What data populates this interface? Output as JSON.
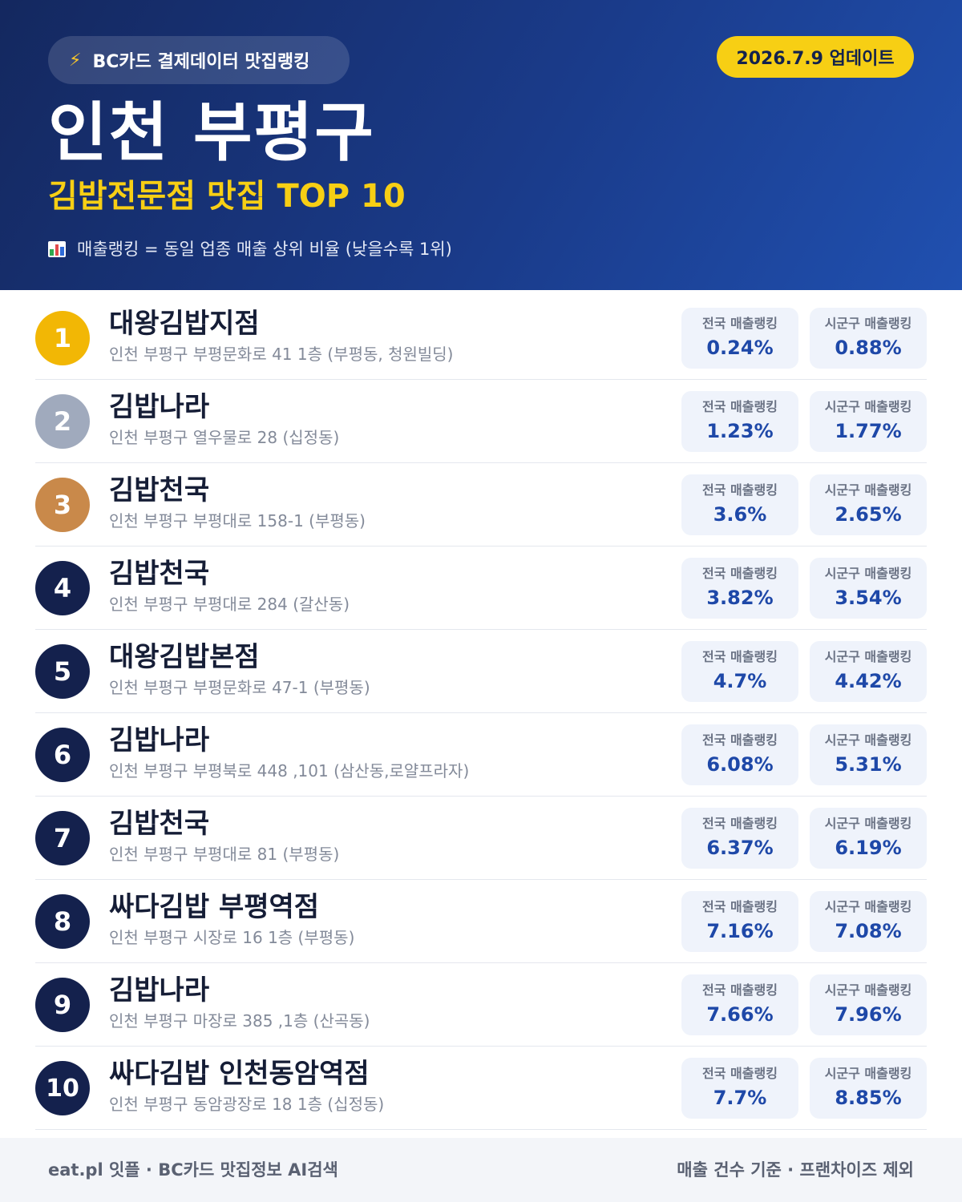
{
  "header": {
    "badge_icon": "lightning-bolt-icon",
    "badge_text": "BC카드 결제데이터 맛집랭킹",
    "update_text": "2026.7.9 업데이트",
    "title": "인천 부평구",
    "subtitle": "김밥전문점 맛집 TOP 10",
    "note_icon": "bar-chart-icon",
    "note_text": "매출랭킹 = 동일 업종 매출 상위 비율 (낮을수록 1위)"
  },
  "colors": {
    "rank1": "#f2b705",
    "rank2": "#a0aabd",
    "rank3": "#c9894a",
    "rank_default": "#14214d",
    "accent_yellow": "#f7cf14",
    "value_blue": "#1e48a8"
  },
  "labels": {
    "national": "전국 매출랭킹",
    "local": "시군구 매출랭킹"
  },
  "restaurants": [
    {
      "rank": "1",
      "name": "대왕김밥지점",
      "address": "인천 부평구 부평문화로 41 1층 (부평동, 청원빌딩)",
      "national": "0.24%",
      "local": "0.88%"
    },
    {
      "rank": "2",
      "name": "김밥나라",
      "address": "인천 부평구 열우물로 28 (십정동)",
      "national": "1.23%",
      "local": "1.77%"
    },
    {
      "rank": "3",
      "name": "김밥천국",
      "address": "인천 부평구 부평대로 158-1 (부평동)",
      "national": "3.6%",
      "local": "2.65%"
    },
    {
      "rank": "4",
      "name": "김밥천국",
      "address": "인천 부평구 부평대로 284 (갈산동)",
      "national": "3.82%",
      "local": "3.54%"
    },
    {
      "rank": "5",
      "name": "대왕김밥본점",
      "address": "인천 부평구 부평문화로 47-1 (부평동)",
      "national": "4.7%",
      "local": "4.42%"
    },
    {
      "rank": "6",
      "name": "김밥나라",
      "address": "인천 부평구 부평북로 448 ,101 (삼산동,로얄프라자)",
      "national": "6.08%",
      "local": "5.31%"
    },
    {
      "rank": "7",
      "name": "김밥천국",
      "address": "인천 부평구 부평대로 81 (부평동)",
      "national": "6.37%",
      "local": "6.19%"
    },
    {
      "rank": "8",
      "name": "싸다김밥 부평역점",
      "address": "인천 부평구 시장로 16 1층 (부평동)",
      "national": "7.16%",
      "local": "7.08%"
    },
    {
      "rank": "9",
      "name": "김밥나라",
      "address": "인천 부평구 마장로 385 ,1층 (산곡동)",
      "national": "7.66%",
      "local": "7.96%"
    },
    {
      "rank": "10",
      "name": "싸다김밥 인천동암역점",
      "address": "인천 부평구 동암광장로 18 1층 (십정동)",
      "national": "7.7%",
      "local": "8.85%"
    }
  ],
  "footer": {
    "left": "eat.pl 잇플 · BC카드 맛집정보 AI검색",
    "right": "매출 건수 기준 · 프랜차이즈 제외"
  }
}
